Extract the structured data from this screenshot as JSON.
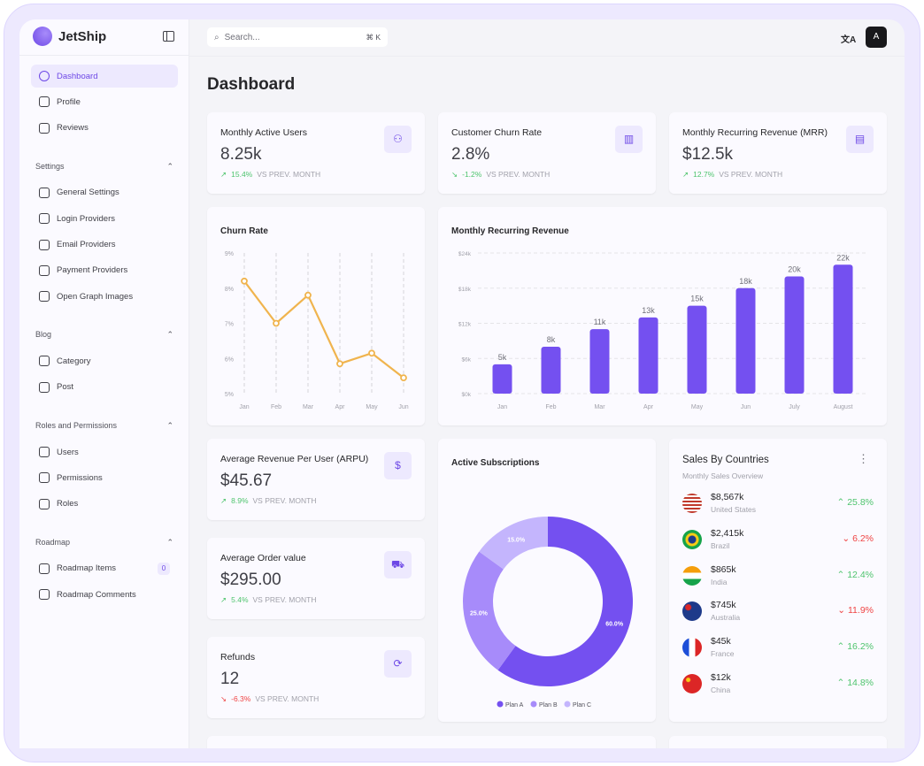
{
  "app": {
    "name": "JetShip"
  },
  "sidebar": {
    "items": [
      {
        "label": "Dashboard",
        "icon": "gauge-icon",
        "active": true
      },
      {
        "label": "Profile",
        "icon": "user-icon"
      },
      {
        "label": "Reviews",
        "icon": "star-icon"
      }
    ],
    "sections": [
      {
        "title": "Settings",
        "items": [
          {
            "label": "General Settings",
            "icon": "gear-icon"
          },
          {
            "label": "Login Providers",
            "icon": "login-icon"
          },
          {
            "label": "Email Providers",
            "icon": "mail-icon"
          },
          {
            "label": "Payment Providers",
            "icon": "wallet-icon"
          },
          {
            "label": "Open Graph Images",
            "icon": "image-icon"
          }
        ]
      },
      {
        "title": "Blog",
        "items": [
          {
            "label": "Category",
            "icon": "grid-plus-icon"
          },
          {
            "label": "Post",
            "icon": "clipboard-icon"
          }
        ]
      },
      {
        "title": "Roles and Permissions",
        "items": [
          {
            "label": "Users",
            "icon": "users-icon"
          },
          {
            "label": "Permissions",
            "icon": "lock-icon"
          },
          {
            "label": "Roles",
            "icon": "lock-icon"
          }
        ]
      },
      {
        "title": "Roadmap",
        "items": [
          {
            "label": "Roadmap Items",
            "icon": "list-check-icon",
            "badge": "0"
          },
          {
            "label": "Roadmap Comments",
            "icon": "server-icon"
          }
        ]
      }
    ]
  },
  "header": {
    "search_placeholder": "Search...",
    "shortcut": "⌘ K",
    "avatar": "A",
    "translate_icon": "translate-icon"
  },
  "page": {
    "title": "Dashboard"
  },
  "stats": [
    {
      "title": "Monthly Active Users",
      "value": "8.25k",
      "delta": "15.4%",
      "trend": "up",
      "vs": "VS PREV. MONTH",
      "icon": "users-icon"
    },
    {
      "title": "Customer Churn Rate",
      "value": "2.8%",
      "delta": "-1.2%",
      "trend": "down-good",
      "vs": "VS PREV. MONTH",
      "icon": "bar-chart-icon"
    },
    {
      "title": "Monthly Recurring Revenue (MRR)",
      "value": "$12.5k",
      "delta": "12.7%",
      "trend": "up",
      "vs": "VS PREV. MONTH",
      "icon": "receipt-icon"
    },
    {
      "title": "Average Revenue Per User (ARPU)",
      "value": "$45.67",
      "delta": "8.9%",
      "trend": "up",
      "vs": "VS PREV. MONTH",
      "icon": "dollar-icon"
    },
    {
      "title": "Average Order value",
      "value": "$295.00",
      "delta": "5.4%",
      "trend": "up",
      "vs": "VS PREV. MONTH",
      "icon": "cart-icon"
    },
    {
      "title": "Refunds",
      "value": "12",
      "delta": "-6.3%",
      "trend": "down",
      "vs": "VS PREV. MONTH",
      "icon": "refresh-icon"
    }
  ],
  "chart_data": [
    {
      "type": "line",
      "title": "Churn Rate",
      "categories": [
        "Jan",
        "Feb",
        "Mar",
        "Apr",
        "May",
        "Jun"
      ],
      "values": [
        8.2,
        7.0,
        7.8,
        5.85,
        6.15,
        5.45
      ],
      "yticks": [
        "5%",
        "6%",
        "7%",
        "8%",
        "9%"
      ],
      "ylim": [
        5,
        9
      ],
      "color": "#f0b44e"
    },
    {
      "type": "bar",
      "title": "Monthly Recurring Revenue",
      "categories": [
        "Jan",
        "Feb",
        "Mar",
        "Apr",
        "May",
        "Jun",
        "July",
        "August"
      ],
      "values": [
        5,
        8,
        11,
        13,
        15,
        18,
        20,
        22
      ],
      "labels": [
        "5k",
        "8k",
        "11k",
        "13k",
        "15k",
        "18k",
        "20k",
        "22k"
      ],
      "yticks": [
        "$0k",
        "$6k",
        "$12k",
        "$18k",
        "$24k"
      ],
      "ylim": [
        0,
        24
      ],
      "color": "#7450f0"
    },
    {
      "type": "pie",
      "title": "Active Subscriptions",
      "series": [
        {
          "name": "Plan A",
          "value": 60,
          "label": "60.0%",
          "color": "#7450f0"
        },
        {
          "name": "Plan B",
          "value": 25,
          "label": "25.0%",
          "color": "#a78bfa"
        },
        {
          "name": "Plan C",
          "value": 15,
          "label": "15.0%",
          "color": "#c4b5fd"
        }
      ]
    }
  ],
  "sales": {
    "title": "Sales By Countries",
    "subtitle": "Monthly Sales Overview",
    "rows": [
      {
        "amount": "$8,567k",
        "country": "United States",
        "pct": "25.8%",
        "trend": "up"
      },
      {
        "amount": "$2,415k",
        "country": "Brazil",
        "pct": "6.2%",
        "trend": "down"
      },
      {
        "amount": "$865k",
        "country": "India",
        "pct": "12.4%",
        "trend": "up"
      },
      {
        "amount": "$745k",
        "country": "Australia",
        "pct": "11.9%",
        "trend": "down"
      },
      {
        "amount": "$45k",
        "country": "France",
        "pct": "16.2%",
        "trend": "up"
      },
      {
        "amount": "$12k",
        "country": "China",
        "pct": "14.8%",
        "trend": "up"
      }
    ]
  }
}
